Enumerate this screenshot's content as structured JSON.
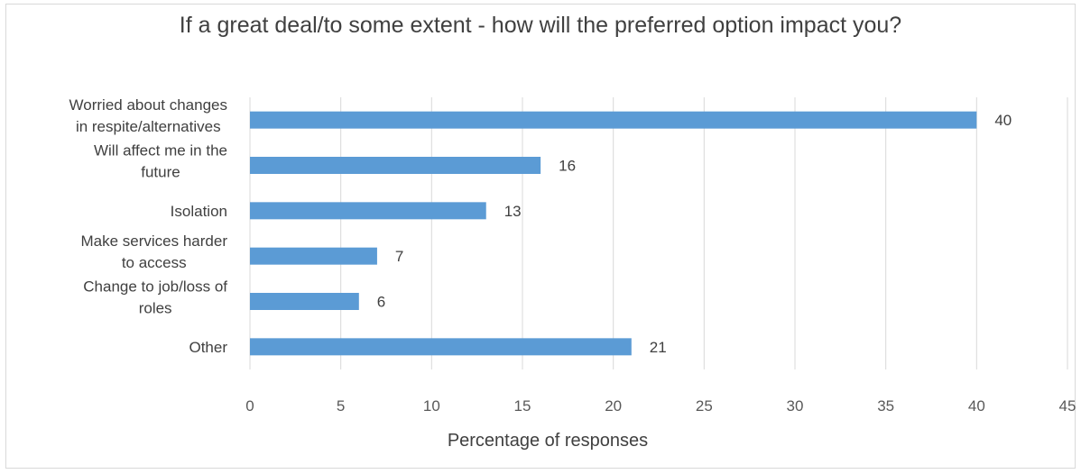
{
  "chart_data": {
    "type": "bar",
    "orientation": "horizontal",
    "title": "If a great deal/to some extent  - how will the preferred option impact you?",
    "xlabel": "Percentage of responses",
    "ylabel": "",
    "categories": [
      [
        "Worried about changes",
        "in respite/alternatives"
      ],
      [
        "Will affect me in the",
        "future"
      ],
      [
        "Isolation"
      ],
      [
        "Make services harder",
        "to access"
      ],
      [
        "Change to job/loss of",
        "roles"
      ],
      [
        "Other"
      ]
    ],
    "values": [
      40,
      16,
      13,
      7,
      6,
      21
    ],
    "data_labels": [
      "40",
      "16",
      "13",
      "7",
      "6",
      "21"
    ],
    "xlim": [
      0,
      45
    ],
    "xticks": [
      0,
      5,
      10,
      15,
      20,
      25,
      30,
      35,
      40,
      45
    ],
    "grid": "vertical",
    "legend": "none",
    "bar_color": "#5b9bd5",
    "grid_color": "#d9d9d9"
  }
}
